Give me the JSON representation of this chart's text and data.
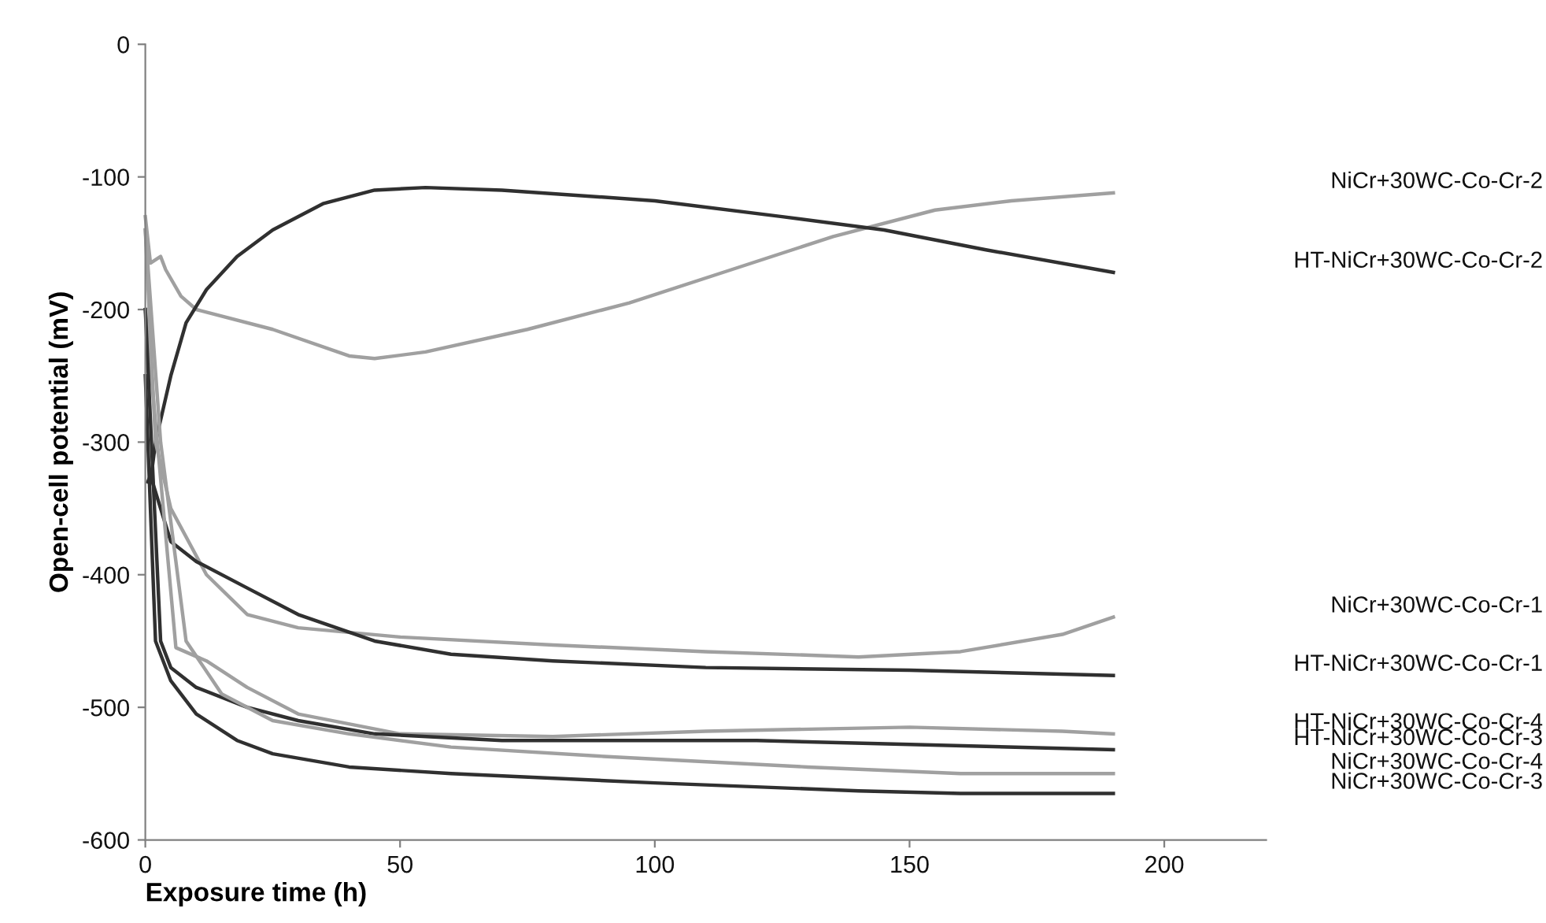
{
  "chart_data": {
    "type": "line",
    "xlabel": "Exposure time (h)",
    "ylabel": "Open-cell potential (mV)",
    "xlim": [
      0,
      220
    ],
    "ylim": [
      -600,
      0
    ],
    "xticks": [
      0,
      50,
      100,
      150,
      200
    ],
    "yticks": [
      -600,
      -500,
      -400,
      -300,
      -200,
      -100,
      0
    ],
    "grid": false,
    "legend": false,
    "marker": "none",
    "line_style": "solid",
    "series": [
      {
        "name": "NiCr+30WC-Co-Cr-2",
        "color": "#a0a0a0",
        "x": [
          0,
          1,
          3,
          4,
          7,
          10,
          25,
          40,
          45,
          55,
          75,
          95,
          115,
          135,
          155,
          170,
          190
        ],
        "values": [
          -130,
          -165,
          -160,
          -170,
          -190,
          -200,
          -215,
          -235,
          -237,
          -232,
          -215,
          -195,
          -170,
          -145,
          -125,
          -118,
          -112
        ]
      },
      {
        "name": "HT-NiCr+30WC-Co-Cr-2",
        "color": "#303030",
        "x": [
          1,
          2,
          5,
          8,
          12,
          18,
          25,
          35,
          45,
          55,
          70,
          100,
          125,
          145,
          165,
          190
        ],
        "values": [
          -330,
          -300,
          -250,
          -210,
          -185,
          -160,
          -140,
          -120,
          -110,
          -108,
          -110,
          -118,
          -130,
          -140,
          -155,
          -172
        ]
      },
      {
        "name": "NiCr+30WC-Co-Cr-1",
        "color": "#a0a0a0",
        "x": [
          0,
          2,
          5,
          12,
          20,
          30,
          50,
          80,
          110,
          140,
          160,
          180,
          190
        ],
        "values": [
          -140,
          -300,
          -350,
          -400,
          -430,
          -440,
          -447,
          -453,
          -458,
          -462,
          -458,
          -445,
          -432
        ]
      },
      {
        "name": "HT-NiCr+30WC-Co-Cr-1",
        "color": "#303030",
        "x": [
          0.5,
          1,
          3,
          5,
          10,
          20,
          30,
          45,
          60,
          80,
          110,
          150,
          190
        ],
        "values": [
          -330,
          -325,
          -350,
          -375,
          -390,
          -410,
          -430,
          -450,
          -460,
          -465,
          -470,
          -472,
          -476
        ]
      },
      {
        "name": "HT-NiCr+30WC-Co-Cr-4",
        "color": "#a0a0a0",
        "x": [
          0,
          6,
          12,
          20,
          30,
          50,
          80,
          110,
          150,
          180,
          190
        ],
        "values": [
          -200,
          -455,
          -465,
          -485,
          -505,
          -520,
          -522,
          -518,
          -515,
          -518,
          -520
        ]
      },
      {
        "name": "HT-NiCr+30WC-Co-Cr-3",
        "color": "#303030",
        "x": [
          0,
          3,
          5,
          10,
          20,
          30,
          45,
          70,
          120,
          150,
          190
        ],
        "values": [
          -200,
          -450,
          -470,
          -485,
          -500,
          -510,
          -520,
          -525,
          -525,
          -528,
          -532
        ]
      },
      {
        "name": "NiCr+30WC-Co-Cr-4",
        "color": "#a0a0a0",
        "x": [
          0,
          3,
          8,
          15,
          25,
          40,
          60,
          90,
          130,
          160,
          190
        ],
        "values": [
          -140,
          -300,
          -450,
          -490,
          -510,
          -520,
          -530,
          -537,
          -545,
          -550,
          -550
        ]
      },
      {
        "name": "NiCr+30WC-Co-Cr-3",
        "color": "#303030",
        "x": [
          0,
          2,
          5,
          10,
          18,
          25,
          40,
          60,
          100,
          140,
          160,
          190
        ],
        "values": [
          -250,
          -450,
          -480,
          -505,
          -525,
          -535,
          -545,
          -550,
          -557,
          -563,
          -565,
          -565
        ]
      }
    ]
  }
}
